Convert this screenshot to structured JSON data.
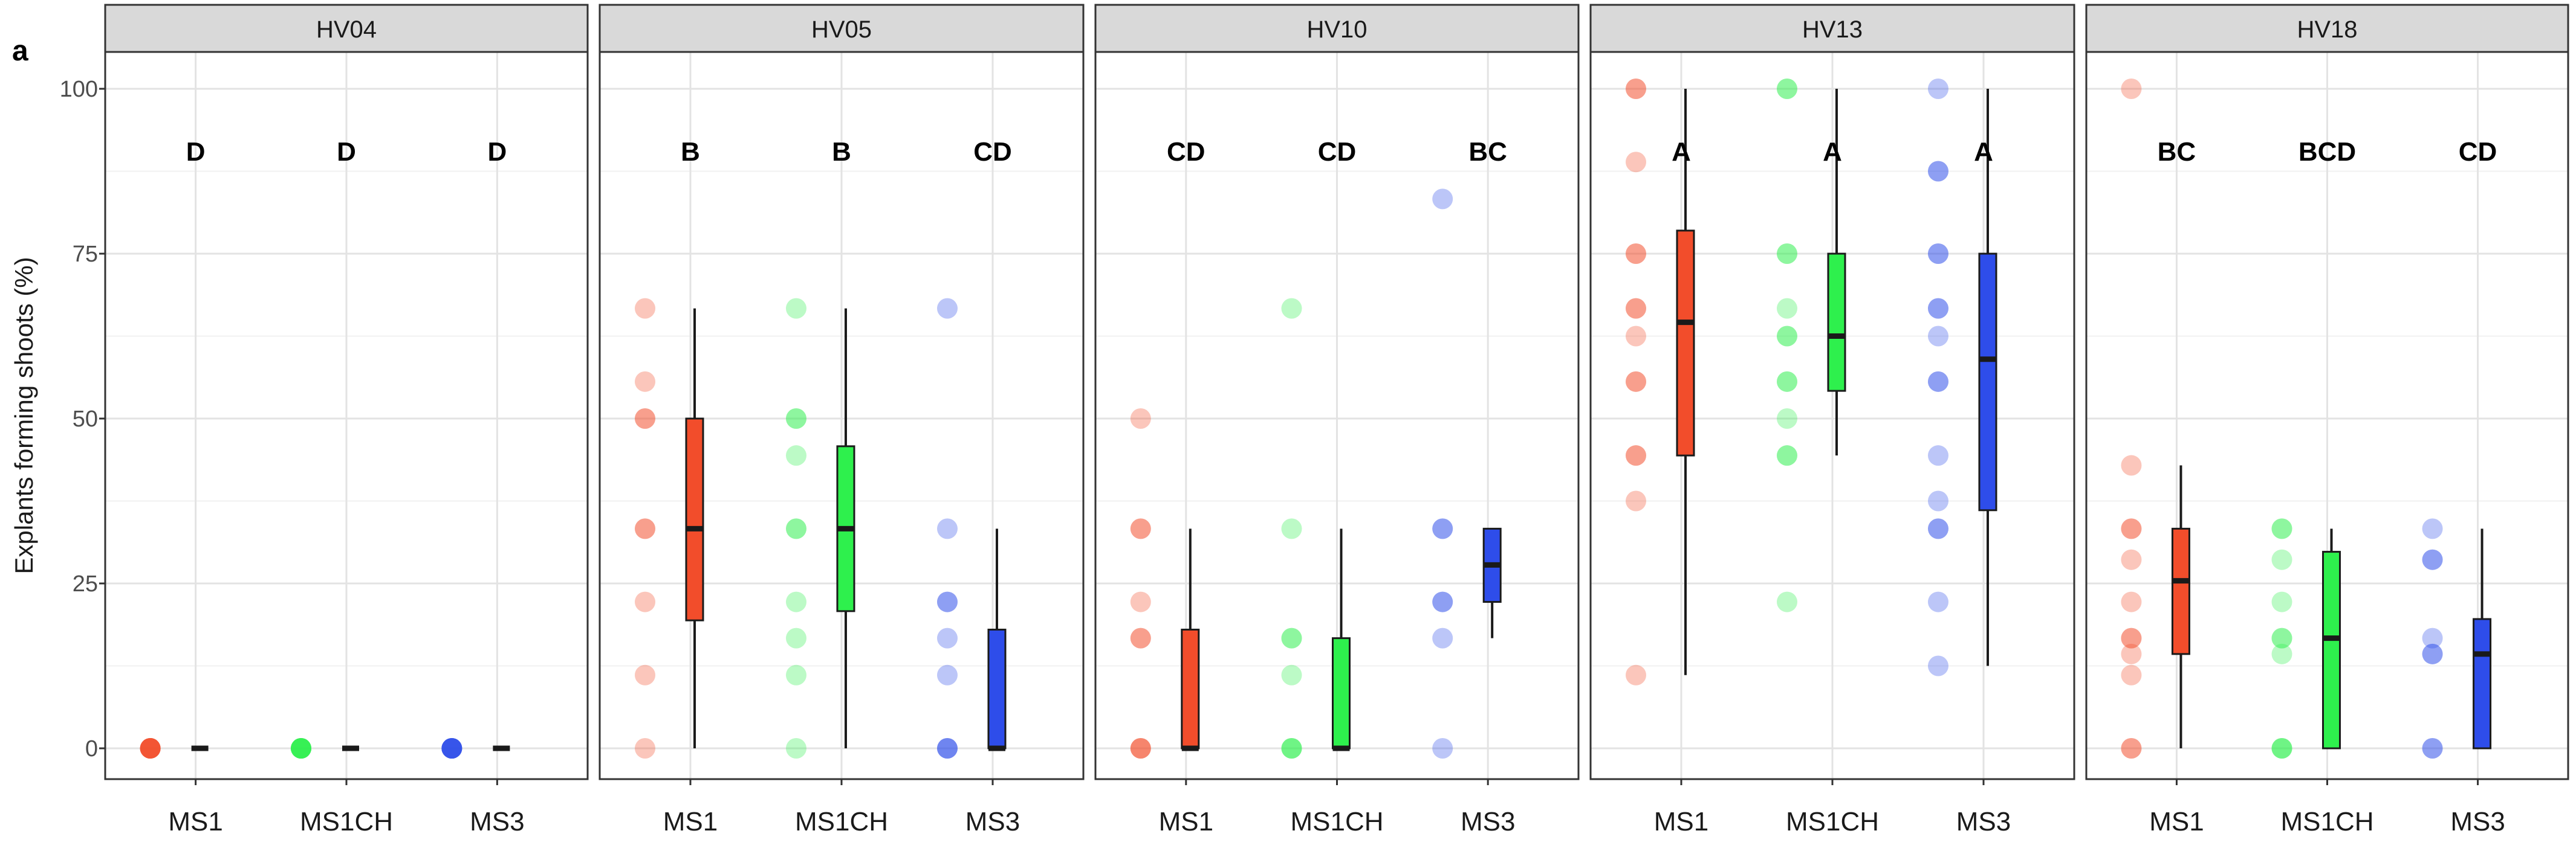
{
  "chart_data": {
    "type": "box",
    "panel_tag": "a",
    "title": "",
    "ylabel": "Explants forming shoots (%)",
    "xlabel": "",
    "ylim": [
      0,
      100
    ],
    "yticks": [
      0,
      25,
      50,
      75,
      100
    ],
    "grid": true,
    "legend": "none",
    "categories": [
      "MS1",
      "MS1CH",
      "MS3"
    ],
    "colors": {
      "MS1": "#f24d2b",
      "MS1CH": "#2ef04d",
      "MS3": "#2e4dea"
    },
    "facets": [
      {
        "name": "HV04",
        "groups": [
          {
            "category": "MS1",
            "letter": "D",
            "box": {
              "min": 0,
              "q1": 0,
              "median": 0,
              "q3": 0,
              "max": 0
            },
            "points": [
              0,
              0,
              0,
              0,
              0,
              0,
              0,
              0
            ]
          },
          {
            "category": "MS1CH",
            "letter": "D",
            "box": {
              "min": 0,
              "q1": 0,
              "median": 0,
              "q3": 0,
              "max": 0
            },
            "points": [
              0,
              0,
              0,
              0,
              0,
              0,
              0,
              0
            ]
          },
          {
            "category": "MS3",
            "letter": "D",
            "box": {
              "min": 0,
              "q1": 0,
              "median": 0,
              "q3": 0,
              "max": 0
            },
            "points": [
              0,
              0,
              0,
              0,
              0,
              0,
              0,
              0
            ]
          }
        ]
      },
      {
        "name": "HV05",
        "groups": [
          {
            "category": "MS1",
            "letter": "B",
            "box": {
              "min": 0,
              "q1": 19.4,
              "median": 33.3,
              "q3": 50,
              "max": 66.7
            },
            "points": [
              66.7,
              55.6,
              50,
              50,
              33.3,
              33.3,
              22.2,
              11.1,
              0
            ]
          },
          {
            "category": "MS1CH",
            "letter": "B",
            "box": {
              "min": 0,
              "q1": 20.8,
              "median": 33.3,
              "q3": 45.8,
              "max": 66.7
            },
            "points": [
              66.7,
              50,
              50,
              44.4,
              33.3,
              33.3,
              22.2,
              16.7,
              11.1,
              0
            ]
          },
          {
            "category": "MS3",
            "letter": "CD",
            "box": {
              "min": 0,
              "q1": 0,
              "median": 0,
              "q3": 18,
              "max": 33.3
            },
            "points": [
              66.7,
              33.3,
              22.2,
              22.2,
              16.7,
              11.1,
              0,
              0,
              0
            ]
          }
        ]
      },
      {
        "name": "HV10",
        "groups": [
          {
            "category": "MS1",
            "letter": "CD",
            "box": {
              "min": 0,
              "q1": 0,
              "median": 0,
              "q3": 18,
              "max": 33.3
            },
            "points": [
              50,
              33.3,
              33.3,
              22.2,
              16.7,
              16.7,
              0,
              0,
              0
            ]
          },
          {
            "category": "MS1CH",
            "letter": "CD",
            "box": {
              "min": 0,
              "q1": 0,
              "median": 0,
              "q3": 16.7,
              "max": 33.3
            },
            "points": [
              66.7,
              33.3,
              16.7,
              16.7,
              11.1,
              0,
              0,
              0
            ]
          },
          {
            "category": "MS3",
            "letter": "BC",
            "box": {
              "min": 16.7,
              "q1": 22.2,
              "median": 27.8,
              "q3": 33.3,
              "max": 33.3
            },
            "points": [
              83.3,
              33.3,
              33.3,
              22.2,
              22.2,
              16.7,
              0
            ]
          }
        ]
      },
      {
        "name": "HV13",
        "groups": [
          {
            "category": "MS1",
            "letter": "A",
            "box": {
              "min": 11.1,
              "q1": 44.4,
              "median": 64.6,
              "q3": 78.5,
              "max": 100
            },
            "points": [
              100,
              100,
              88.9,
              75,
              75,
              66.7,
              66.7,
              62.5,
              55.6,
              55.6,
              44.4,
              44.4,
              37.5,
              11.1
            ]
          },
          {
            "category": "MS1CH",
            "letter": "A",
            "box": {
              "min": 44.4,
              "q1": 54.2,
              "median": 62.5,
              "q3": 75,
              "max": 100
            },
            "points": [
              100,
              100,
              75,
              75,
              66.7,
              62.5,
              62.5,
              55.6,
              55.6,
              50,
              44.4,
              44.4,
              22.2
            ]
          },
          {
            "category": "MS3",
            "letter": "A",
            "box": {
              "min": 12.5,
              "q1": 36.1,
              "median": 59,
              "q3": 75,
              "max": 100
            },
            "points": [
              100,
              87.5,
              87.5,
              75,
              75,
              66.7,
              66.7,
              62.5,
              55.6,
              55.6,
              44.4,
              37.5,
              33.3,
              33.3,
              22.2,
              12.5
            ]
          }
        ]
      },
      {
        "name": "HV18",
        "groups": [
          {
            "category": "MS1",
            "letter": "BC",
            "box": {
              "min": 0,
              "q1": 14.3,
              "median": 25.4,
              "q3": 33.3,
              "max": 42.9
            },
            "points": [
              100,
              42.9,
              33.3,
              33.3,
              28.6,
              22.2,
              16.7,
              16.7,
              14.3,
              11.1,
              0,
              0
            ]
          },
          {
            "category": "MS1CH",
            "letter": "BCD",
            "box": {
              "min": 0,
              "q1": 0,
              "median": 16.7,
              "q3": 29.8,
              "max": 33.3
            },
            "points": [
              33.3,
              33.3,
              28.6,
              22.2,
              16.7,
              16.7,
              14.3,
              0,
              0,
              0
            ]
          },
          {
            "category": "MS3",
            "letter": "CD",
            "box": {
              "min": 0,
              "q1": 0,
              "median": 14.3,
              "q3": 19.6,
              "max": 33.3
            },
            "points": [
              33.3,
              28.6,
              28.6,
              16.7,
              14.3,
              14.3,
              0,
              0
            ]
          }
        ]
      }
    ]
  }
}
